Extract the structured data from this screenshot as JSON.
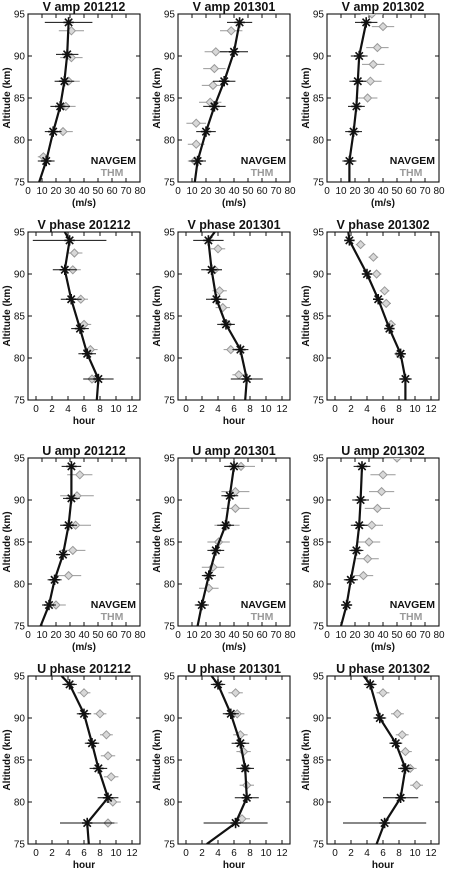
{
  "figure": {
    "ylabel": "Altitude (km)",
    "legend": {
      "navgem": "NAVGEM",
      "thm": "THM"
    },
    "colors": {
      "navgem": "#111111",
      "thm": "#999999",
      "thm_fill": "#d8d8d8"
    },
    "altitudes": [
      94,
      90.5,
      87,
      83.5,
      80.5,
      77.5
    ]
  },
  "chart_data": [
    {
      "id": "va12",
      "type": "line",
      "title": "V amp 201212",
      "xlabel": "(m/s)",
      "xlim": [
        0,
        80
      ],
      "ylim": [
        75,
        95
      ],
      "xticks": [
        0,
        10,
        20,
        30,
        40,
        50,
        60,
        70,
        80
      ],
      "yticks": [
        75,
        80,
        85,
        90,
        95
      ],
      "legend": true,
      "navgem": {
        "alt": [
          94,
          90.2,
          87,
          84,
          81,
          77.5,
          75
        ],
        "x": [
          29,
          28,
          26,
          23,
          18,
          13,
          8
        ],
        "err": [
          17,
          8,
          7,
          7,
          6,
          6,
          0
        ]
      },
      "thm": {
        "alt": [
          93,
          89.8,
          87,
          84,
          81,
          78
        ],
        "x": [
          31,
          31,
          29,
          27,
          25,
          11
        ],
        "err": [
          9,
          8,
          8,
          7,
          7,
          4
        ]
      }
    },
    {
      "id": "va01",
      "type": "line",
      "title": "V amp 201301",
      "xlabel": "(m/s)",
      "xlim": [
        0,
        80
      ],
      "ylim": [
        75,
        95
      ],
      "xticks": [
        0,
        10,
        20,
        30,
        40,
        50,
        60,
        70,
        80
      ],
      "yticks": [
        75,
        80,
        85,
        90,
        95
      ],
      "legend": true,
      "navgem": {
        "alt": [
          94,
          90.5,
          87,
          84,
          81,
          77.5,
          75
        ],
        "x": [
          44,
          40,
          33,
          26,
          20,
          14,
          12
        ],
        "err": [
          9,
          10,
          8,
          8,
          7,
          6,
          0
        ]
      },
      "thm": {
        "alt": [
          93,
          90.5,
          88.5,
          86.5,
          84.5,
          82,
          79.5,
          77.5
        ],
        "x": [
          38,
          27,
          26,
          25,
          23,
          13,
          13,
          12
        ],
        "err": [
          8,
          8,
          8,
          8,
          8,
          7,
          6,
          5
        ]
      }
    },
    {
      "id": "va02",
      "type": "line",
      "title": "V amp 201302",
      "xlabel": "(m/s)",
      "xlim": [
        0,
        80
      ],
      "ylim": [
        75,
        95
      ],
      "xticks": [
        0,
        10,
        20,
        30,
        40,
        50,
        60,
        70,
        80
      ],
      "yticks": [
        75,
        80,
        85,
        90,
        95
      ],
      "legend": true,
      "navgem": {
        "alt": [
          94,
          90,
          87,
          84,
          81,
          77.5,
          75
        ],
        "x": [
          28,
          23,
          22,
          21,
          19,
          16,
          16
        ],
        "err": [
          8,
          6,
          6,
          6,
          6,
          5,
          0
        ]
      },
      "thm": {
        "alt": [
          95,
          93.5,
          91,
          89,
          87,
          85
        ],
        "x": [
          32,
          40,
          36,
          33,
          31,
          29
        ],
        "err": [
          8,
          8,
          8,
          8,
          8,
          7
        ]
      }
    },
    {
      "id": "vp12",
      "type": "line",
      "title": "V phase 201212",
      "xlabel": "hour",
      "xlim": [
        -1,
        13
      ],
      "ylim": [
        75,
        95
      ],
      "xticks": [
        0,
        2,
        4,
        6,
        8,
        10,
        12
      ],
      "yticks": [
        75,
        80,
        85,
        90,
        95
      ],
      "legend": false,
      "navgem": {
        "alt": [
          95,
          94,
          90.5,
          87,
          83.5,
          80.5,
          77.5,
          75
        ],
        "x": [
          3.6,
          4.2,
          3.6,
          4.4,
          5.5,
          6.4,
          7.8,
          7.6
        ],
        "err": [
          0,
          4.6,
          1.5,
          1.3,
          1.1,
          1.1,
          1.9,
          0
        ]
      },
      "thm": {
        "alt": [
          92.5,
          90.5,
          87,
          84,
          81,
          77.5
        ],
        "x": [
          4.8,
          4.6,
          5.6,
          6.0,
          6.8,
          7.0
        ],
        "err": [
          1.0,
          1.0,
          0.9,
          0.9,
          0.9,
          0.8
        ]
      }
    },
    {
      "id": "vp01",
      "type": "line",
      "title": "V phase 201301",
      "xlabel": "hour",
      "xlim": [
        -1,
        13
      ],
      "ylim": [
        75,
        95
      ],
      "xticks": [
        0,
        2,
        4,
        6,
        8,
        10,
        12
      ],
      "yticks": [
        75,
        80,
        85,
        90,
        95
      ],
      "legend": false,
      "navgem": {
        "alt": [
          95,
          94,
          90.5,
          87,
          84,
          81,
          77.5,
          75
        ],
        "x": [
          3.6,
          2.8,
          3.2,
          3.8,
          5.0,
          6.8,
          7.6,
          7.4
        ],
        "err": [
          0,
          1.9,
          1.3,
          1.3,
          1.1,
          1.0,
          2.0,
          0
        ]
      },
      "thm": {
        "alt": [
          93,
          90.5,
          88,
          86,
          84,
          81,
          78
        ],
        "x": [
          4.0,
          3.6,
          4.2,
          4.6,
          5.2,
          5.6,
          6.6
        ],
        "err": [
          0.9,
          0.9,
          0.9,
          0.9,
          0.9,
          0.9,
          0.8
        ]
      }
    },
    {
      "id": "vp02",
      "type": "line",
      "title": "V phase 201302",
      "xlabel": "hour",
      "xlim": [
        -1,
        13
      ],
      "ylim": [
        75,
        95
      ],
      "xticks": [
        0,
        2,
        4,
        6,
        8,
        10,
        12
      ],
      "yticks": [
        75,
        80,
        85,
        90,
        95
      ],
      "legend": false,
      "navgem": {
        "alt": [
          95.5,
          94,
          90,
          87,
          83.5,
          80.5,
          77.5,
          75
        ],
        "x": [
          1.6,
          1.8,
          4.0,
          5.4,
          6.8,
          8.2,
          8.8,
          8.8
        ],
        "err": [
          0,
          0.6,
          0.6,
          0.5,
          0.5,
          0.6,
          0.8,
          0
        ]
      },
      "thm": {
        "alt": [
          93.5,
          92,
          90,
          88,
          86.5,
          84,
          80.5
        ],
        "x": [
          3.2,
          4.8,
          5.2,
          6.2,
          6.4,
          7.0,
          8.0
        ],
        "err": [
          0.6,
          0.6,
          0.6,
          0.6,
          0.6,
          0.6,
          0.6
        ]
      }
    },
    {
      "id": "ua12",
      "type": "line",
      "title": "U amp 201212",
      "xlabel": "(m/s)",
      "xlim": [
        0,
        80
      ],
      "ylim": [
        75,
        95
      ],
      "xticks": [
        0,
        10,
        20,
        30,
        40,
        50,
        60,
        70,
        80
      ],
      "yticks": [
        75,
        80,
        85,
        90,
        95
      ],
      "legend": true,
      "navgem": {
        "alt": [
          94,
          90.2,
          87,
          83.5,
          80.5,
          77.5,
          75
        ],
        "x": [
          31,
          31,
          29,
          25,
          19,
          15,
          9
        ],
        "err": [
          7,
          6,
          6,
          5,
          5,
          5,
          0
        ]
      },
      "thm": {
        "alt": [
          93,
          90.5,
          87,
          84,
          81,
          77.5
        ],
        "x": [
          37,
          35,
          34,
          32,
          29,
          20
        ],
        "err": [
          9,
          12,
          11,
          9,
          9,
          7
        ]
      }
    },
    {
      "id": "ua01",
      "type": "line",
      "title": "U amp 201301",
      "xlabel": "(m/s)",
      "xlim": [
        0,
        80
      ],
      "ylim": [
        75,
        95
      ],
      "xticks": [
        0,
        10,
        20,
        30,
        40,
        50,
        60,
        70,
        80
      ],
      "yticks": [
        75,
        80,
        85,
        90,
        95
      ],
      "legend": true,
      "navgem": {
        "alt": [
          94,
          90.5,
          87,
          84,
          81,
          77.5,
          75
        ],
        "x": [
          40,
          37,
          34,
          27,
          22,
          17,
          14
        ],
        "err": [
          7,
          6,
          6,
          6,
          5,
          5,
          0
        ]
      },
      "thm": {
        "alt": [
          94,
          91,
          89,
          87,
          85,
          82,
          79.5
        ],
        "x": [
          45,
          41,
          41,
          35,
          29,
          25,
          22
        ],
        "err": [
          10,
          10,
          10,
          9,
          8,
          8,
          7
        ]
      }
    },
    {
      "id": "ua02",
      "type": "line",
      "title": "U amp 201302",
      "xlabel": "(m/s)",
      "xlim": [
        0,
        80
      ],
      "ylim": [
        75,
        95
      ],
      "xticks": [
        0,
        10,
        20,
        30,
        40,
        50,
        60,
        70,
        80
      ],
      "yticks": [
        75,
        80,
        85,
        90,
        95
      ],
      "legend": true,
      "navgem": {
        "alt": [
          94,
          90,
          87,
          84,
          80.5,
          77.5,
          75
        ],
        "x": [
          25,
          24,
          23,
          21,
          17,
          14,
          10
        ],
        "err": [
          6,
          6,
          6,
          5,
          5,
          4,
          0
        ]
      },
      "thm": {
        "alt": [
          95,
          93,
          91,
          89,
          87,
          85,
          83,
          81
        ],
        "x": [
          50,
          40,
          39,
          36,
          32,
          30,
          29,
          26
        ],
        "err": [
          9,
          9,
          9,
          9,
          8,
          8,
          8,
          7
        ]
      }
    },
    {
      "id": "up12",
      "type": "line",
      "title": "U phase 201212",
      "xlabel": "hour",
      "xlim": [
        -1,
        13
      ],
      "ylim": [
        75,
        95
      ],
      "xticks": [
        0,
        2,
        4,
        6,
        8,
        10,
        12
      ],
      "yticks": [
        75,
        80,
        85,
        90,
        95
      ],
      "legend": false,
      "navgem": {
        "alt": [
          95,
          94,
          90.5,
          87,
          84,
          80.5,
          77.5,
          75
        ],
        "x": [
          3.2,
          4.2,
          6.0,
          7.0,
          7.8,
          9.0,
          6.4,
          6.6
        ],
        "err": [
          0,
          0.9,
          0.9,
          0.9,
          1.1,
          1.3,
          3.4,
          0
        ]
      },
      "thm": {
        "alt": [
          93,
          90.5,
          88,
          85.5,
          83,
          80,
          77.5
        ],
        "x": [
          6.0,
          8.0,
          8.8,
          9.0,
          9.4,
          9.6,
          9.0
        ],
        "err": [
          0.8,
          0.8,
          0.8,
          0.9,
          0.9,
          1.0,
          1.2
        ]
      }
    },
    {
      "id": "up01",
      "type": "line",
      "title": "U phase 201301",
      "xlabel": "hour",
      "xlim": [
        -1,
        13
      ],
      "ylim": [
        75,
        95
      ],
      "xticks": [
        0,
        2,
        4,
        6,
        8,
        10,
        12
      ],
      "yticks": [
        75,
        80,
        85,
        90,
        95
      ],
      "legend": false,
      "navgem": {
        "alt": [
          95,
          94,
          90.5,
          87,
          84,
          80.5,
          77.5,
          75
        ],
        "x": [
          3.2,
          4.0,
          5.6,
          6.8,
          7.4,
          7.6,
          6.2,
          2.6
        ],
        "err": [
          0,
          0.9,
          1.0,
          1.1,
          1.1,
          1.5,
          4.0,
          0
        ]
      },
      "thm": {
        "alt": [
          93,
          90.5,
          88,
          86,
          84,
          82,
          78
        ],
        "x": [
          6.2,
          6.4,
          6.8,
          7.2,
          7.4,
          7.6,
          7.0
        ],
        "err": [
          0.9,
          0.9,
          0.9,
          0.9,
          0.9,
          0.9,
          1.0
        ]
      }
    },
    {
      "id": "up02",
      "type": "line",
      "title": "U phase 201302",
      "xlabel": "hour",
      "xlim": [
        -1,
        13
      ],
      "ylim": [
        75,
        95
      ],
      "xticks": [
        0,
        2,
        4,
        6,
        8,
        10,
        12
      ],
      "yticks": [
        75,
        80,
        85,
        90,
        95
      ],
      "legend": false,
      "navgem": {
        "alt": [
          95.5,
          94,
          90,
          87,
          84,
          80.5,
          77.5,
          75
        ],
        "x": [
          3.2,
          4.4,
          5.6,
          7.6,
          8.8,
          8.2,
          6.2,
          5.2
        ],
        "err": [
          0,
          0.8,
          0.8,
          0.8,
          0.9,
          2.2,
          5.2,
          0
        ]
      },
      "thm": {
        "alt": [
          93,
          90.5,
          88,
          86,
          84,
          82
        ],
        "x": [
          6.0,
          7.8,
          8.4,
          8.8,
          9.4,
          10.2
        ],
        "err": [
          0.8,
          0.8,
          0.8,
          0.8,
          0.8,
          0.8
        ]
      }
    }
  ]
}
